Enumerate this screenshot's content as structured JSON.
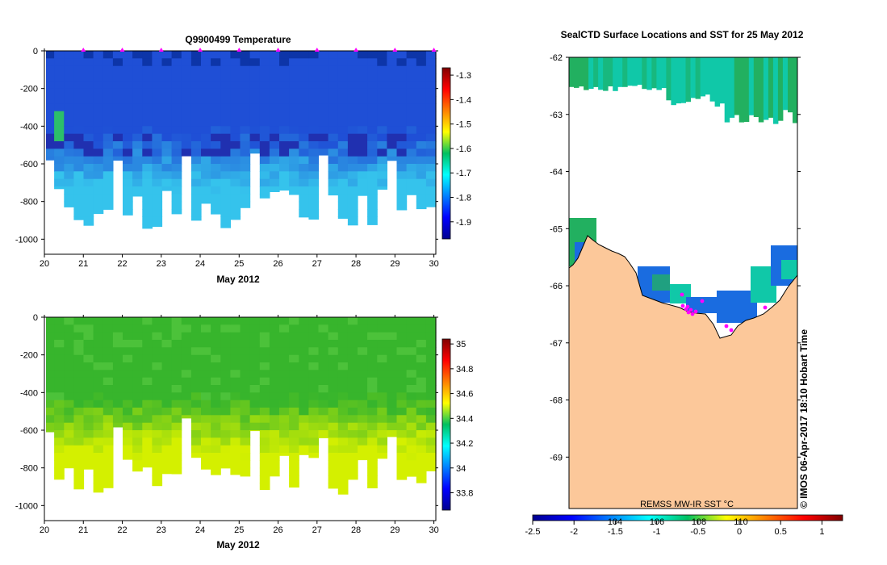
{
  "chart_data": [
    {
      "type": "heatmap",
      "title": "Q9900499  Temperature",
      "xlabel": "May 2012",
      "ylabel": "",
      "x_ticks": [
        "20",
        "21",
        "22",
        "23",
        "24",
        "25",
        "26",
        "27",
        "28",
        "29",
        "30"
      ],
      "y_ticks": [
        "0",
        "-200",
        "-400",
        "-600",
        "-800",
        "-1000"
      ],
      "xlim": [
        20,
        30.05
      ],
      "ylim": [
        -1080,
        0
      ],
      "colorbar_ticks": [
        "-1.3",
        "-1.4",
        "-1.5",
        "-1.6",
        "-1.7",
        "-1.8",
        "-1.9"
      ],
      "colorbar_range": [
        -1.97,
        -1.27
      ],
      "markers": [
        21,
        22,
        23,
        24,
        25,
        26,
        27,
        28,
        29,
        30
      ],
      "profile_columns": 40,
      "colors": {
        "shallow": "#1f4fd6",
        "deep": "#35c3ec",
        "surface_min": "#0d35a8",
        "marker": "#ff00ff"
      }
    },
    {
      "type": "heatmap",
      "title": "",
      "xlabel": "May 2012",
      "ylabel": "",
      "x_ticks": [
        "20",
        "21",
        "22",
        "23",
        "24",
        "25",
        "26",
        "27",
        "28",
        "29",
        "30"
      ],
      "y_ticks": [
        "0",
        "-200",
        "-400",
        "-600",
        "-800",
        "-1000"
      ],
      "xlim": [
        20,
        30.05
      ],
      "ylim": [
        -1080,
        0
      ],
      "colorbar_ticks": [
        "35",
        "34.8",
        "34.6",
        "34.4",
        "34.2",
        "34",
        "33.8"
      ],
      "colorbar_range": [
        33.66,
        35.04
      ],
      "colors": {
        "shallow": "#37b52c",
        "deep": "#d4f000"
      }
    },
    {
      "type": "map",
      "title": "SealCTD Surface Locations and SST for 25 May 2012",
      "y_ticks": [
        "-62",
        "-63",
        "-64",
        "-65",
        "-66",
        "-67",
        "-68",
        "-69"
      ],
      "ylim": [
        -69.9,
        -62
      ],
      "colorbar_label": "REMSS MW-IR SST °C",
      "colorbar_ticks": [
        "-2.5",
        "-2",
        "-1.5",
        "-1",
        "-0.5",
        "0",
        "0.5",
        "1"
      ],
      "colorbar_inner_labels": [
        "104",
        "106",
        "108",
        "110"
      ],
      "colorbar_range": [
        -2.5,
        1.25
      ],
      "colors": {
        "land": "#fcc89a",
        "ice": "#ffffff",
        "ocean_green": "#22b060",
        "ocean_teal": "#10c8a8",
        "ocean_blue": "#1a6ce0",
        "marker": "#ff00ff"
      }
    }
  ],
  "watermark": "© IMOS 06-Apr-2017 18:10 Hobart Time"
}
